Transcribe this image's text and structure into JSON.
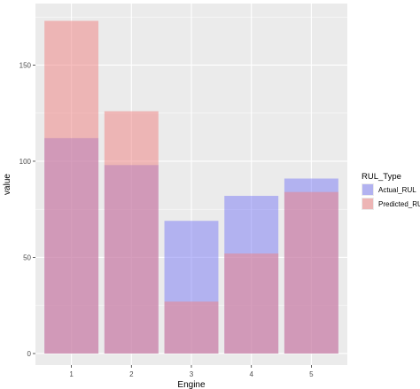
{
  "chart_data": {
    "type": "bar",
    "bar_mode": "overlay",
    "categories": [
      "1",
      "2",
      "3",
      "4",
      "5"
    ],
    "series": [
      {
        "name": "Actual_RUL",
        "values": [
          112,
          98,
          69,
          82,
          91
        ],
        "color": "#7a7af5"
      },
      {
        "name": "Predicted_RUL",
        "values": [
          173,
          126,
          27,
          52,
          84
        ],
        "color": "#f08080"
      }
    ],
    "xlabel": "Engine",
    "ylabel": "value",
    "ylim": [
      -6,
      182
    ],
    "yticks": [
      0,
      50,
      100,
      150
    ],
    "legend_title": "RUL_Type",
    "legend_position": "right",
    "panel_background": "#ebebeb",
    "grid": true,
    "bar_opacity": 0.5
  }
}
